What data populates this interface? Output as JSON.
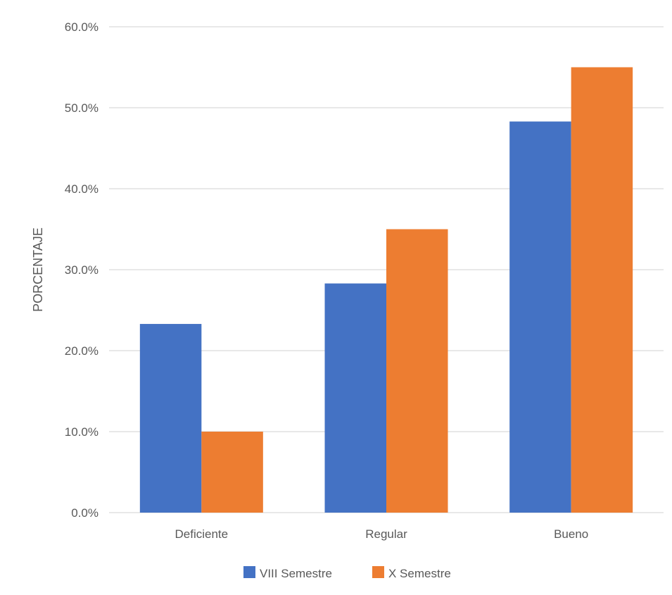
{
  "chart_data": {
    "type": "bar",
    "title": "",
    "xlabel": "",
    "ylabel": "PORCENTAJE",
    "categories": [
      "Deficiente",
      "Regular",
      "Bueno"
    ],
    "series": [
      {
        "name": "VIII Semestre",
        "color": "#4472C4",
        "values": [
          23.3,
          28.3,
          48.3
        ]
      },
      {
        "name": "X Semestre",
        "color": "#ED7D31",
        "values": [
          10.0,
          35.0,
          55.0
        ]
      }
    ],
    "ylim": [
      0,
      60
    ],
    "yticks": [
      0,
      10,
      20,
      30,
      40,
      50,
      60
    ],
    "ytick_labels": [
      "0.0%",
      "10.0%",
      "20.0%",
      "30.0%",
      "40.0%",
      "50.0%",
      "60.0%"
    ],
    "grid": true,
    "legend_position": "bottom",
    "gridline_color": "#D9D9D9"
  }
}
